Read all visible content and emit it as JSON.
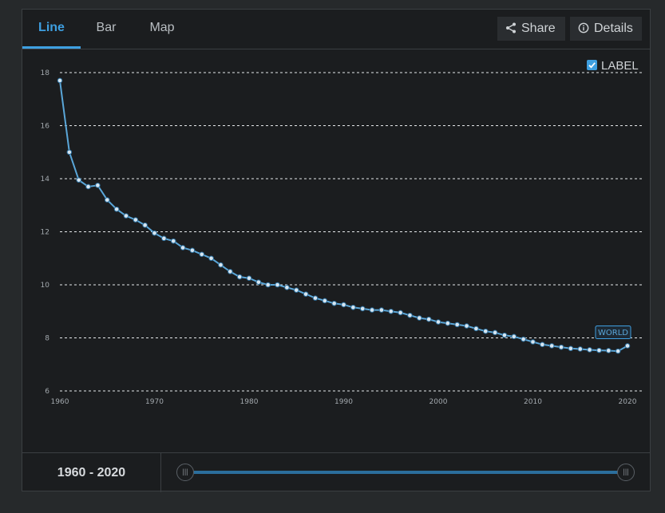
{
  "tabs": [
    {
      "label": "Line",
      "active": true
    },
    {
      "label": "Bar",
      "active": false
    },
    {
      "label": "Map",
      "active": false
    }
  ],
  "toolbar": {
    "share_label": "Share",
    "details_label": "Details"
  },
  "label_toggle": {
    "label": "LABEL",
    "checked": true
  },
  "footer": {
    "range_label": "1960 - 2020",
    "range_start": 1960,
    "range_end": 2020
  },
  "colors": {
    "accent": "#3e9fe0",
    "line": "#5aa6d8",
    "marker": "#d7e6f1"
  },
  "chart_data": {
    "type": "line",
    "x": [
      1960,
      1961,
      1962,
      1963,
      1964,
      1965,
      1966,
      1967,
      1968,
      1969,
      1970,
      1971,
      1972,
      1973,
      1974,
      1975,
      1976,
      1977,
      1978,
      1979,
      1980,
      1981,
      1982,
      1983,
      1984,
      1985,
      1986,
      1987,
      1988,
      1989,
      1990,
      1991,
      1992,
      1993,
      1994,
      1995,
      1996,
      1997,
      1998,
      1999,
      2000,
      2001,
      2002,
      2003,
      2004,
      2005,
      2006,
      2007,
      2008,
      2009,
      2010,
      2011,
      2012,
      2013,
      2014,
      2015,
      2016,
      2017,
      2018,
      2019,
      2020
    ],
    "series": [
      {
        "name": "",
        "values": [
          17.7,
          15.0,
          13.95,
          13.7,
          13.75,
          13.2,
          12.85,
          12.6,
          12.45,
          12.25,
          11.95,
          11.75,
          11.65,
          11.4,
          11.3,
          11.15,
          11.0,
          10.75,
          10.5,
          10.3,
          10.25,
          10.1,
          10.0,
          10.0,
          9.9,
          9.8,
          9.65,
          9.5,
          9.4,
          9.3,
          9.25,
          9.15,
          9.1,
          9.05,
          9.05,
          9.0,
          8.95,
          8.85,
          8.75,
          8.7,
          8.6,
          8.55,
          8.5,
          8.45,
          8.35,
          8.25,
          8.2,
          8.1,
          8.05,
          7.95,
          7.85,
          7.75,
          7.7,
          7.65,
          7.6,
          7.58,
          7.55,
          7.53,
          7.52,
          7.5,
          7.7
        ]
      }
    ],
    "xlim": [
      1960,
      2020
    ],
    "ylim": [
      6,
      18
    ],
    "x_ticks": [
      1960,
      1970,
      1980,
      1990,
      2000,
      2010,
      2020
    ],
    "y_ticks": [
      6,
      8,
      10,
      12,
      14,
      16,
      18
    ],
    "grid": true,
    "end_label": "WORLD"
  }
}
